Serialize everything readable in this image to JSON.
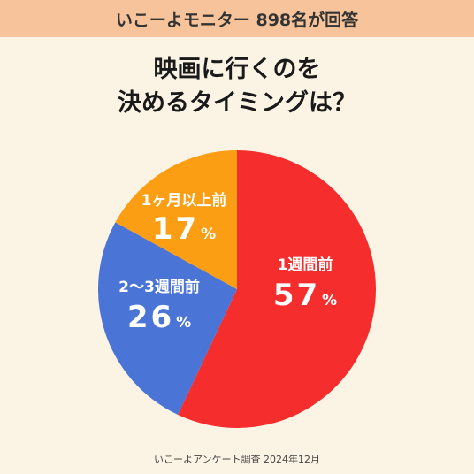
{
  "header": {
    "text": "いこーよモニター  898名が回答"
  },
  "title": {
    "line1": "映画に行くのを",
    "line2": "決めるタイミングは？"
  },
  "chart_data": {
    "type": "pie",
    "start_angle_deg": 0,
    "direction": "clockwise",
    "slices": [
      {
        "label": "1週間前",
        "value": 57,
        "display": "57",
        "unit": "%",
        "color": "#f52d2d"
      },
      {
        "label": "2〜3週間前",
        "value": 26,
        "display": "26",
        "unit": "%",
        "color": "#4a74d6"
      },
      {
        "label": "1ヶ月以上前",
        "value": 17,
        "display": "17",
        "unit": "%",
        "color": "#fb9e13"
      }
    ],
    "label_color": "#ffffff"
  },
  "footer": {
    "text": "いこーよアンケート調査 2024年12月"
  }
}
